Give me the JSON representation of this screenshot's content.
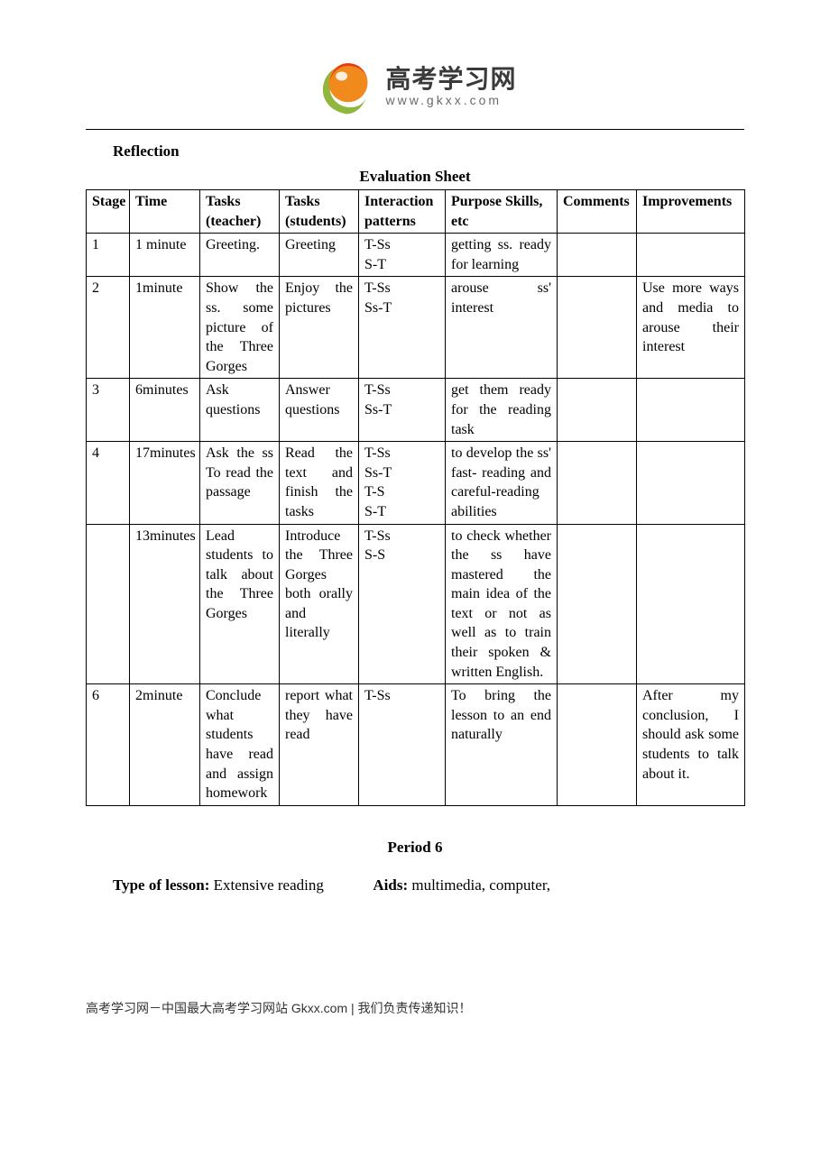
{
  "logo": {
    "cn": "高考学习网",
    "url": "www.gkxx.com",
    "swirl_green": "#8fb63d",
    "swirl_orange_outer": "#f08a1d",
    "swirl_orange_inner": "#e73c17",
    "swirl_highlight": "#ffffff"
  },
  "labels": {
    "reflection": "Reflection",
    "sheet_title": "Evaluation Sheet",
    "period": "Period 6",
    "type_label": "Type of lesson:",
    "type_value": "Extensive reading",
    "aids_label": "Aids:",
    "aids_value": "multimedia, computer,"
  },
  "table": {
    "headers": {
      "stage": "Stage",
      "time": "Time",
      "tasks_teacher": "Tasks (teacher)",
      "tasks_students": "Tasks (students)",
      "interaction": "Interaction patterns",
      "purpose": "Purpose Skills, etc",
      "comments": "Comments",
      "improvements": "Improvements"
    },
    "rows": [
      {
        "stage": "1",
        "time": "1 minute",
        "tasks_teacher": "Greeting.",
        "tasks_students": "Greeting",
        "interaction": "T-Ss\nS-T",
        "purpose": "getting ss. ready for learning",
        "comments": "",
        "improvements": ""
      },
      {
        "stage": "2",
        "time": "1minute",
        "tasks_teacher": "Show the ss. some picture of the Three Gorges",
        "tasks_students": "Enjoy the pictures",
        "interaction": "T-Ss\nSs-T",
        "purpose": "arouse ss' interest",
        "comments": "",
        "improvements": "Use more ways and media to arouse their interest"
      },
      {
        "stage": "3",
        "time": "6minutes",
        "tasks_teacher": "Ask questions",
        "tasks_students": "Answer questions",
        "interaction": "T-Ss\nSs-T",
        "purpose": "get them ready for the reading task",
        "comments": "",
        "improvements": ""
      },
      {
        "stage": "4",
        "time": "17minutes",
        "tasks_teacher": "Ask the ss To read the passage",
        "tasks_students": "Read the text and finish the tasks",
        "interaction": "T-Ss\nSs-T\nT-S\nS-T",
        "purpose": "to develop the ss' fast- reading and careful-reading abilities",
        "comments": "",
        "improvements": ""
      },
      {
        "stage": "",
        "time": "13minutes",
        "tasks_teacher": "Lead students to talk about the Three Gorges",
        "tasks_students": "Introduce the Three Gorges both orally and literally",
        "interaction": "T-Ss\nS-S",
        "purpose": "to check whether the ss have mastered the main idea of the text or not as well as to train their spoken & written English.",
        "comments": "",
        "improvements": ""
      },
      {
        "stage": "6",
        "time": "2minute",
        "tasks_teacher": "Conclude what students have read and assign homework",
        "tasks_students": "report what they have read",
        "interaction": "T-Ss",
        "purpose": "To bring the lesson to an end naturally",
        "comments": "",
        "improvements": "After my conclusion, I should ask some students to talk about it."
      }
    ]
  },
  "footer": "高考学习网－中国最大高考学习网站 Gkxx.com |  我们负责传递知识！"
}
